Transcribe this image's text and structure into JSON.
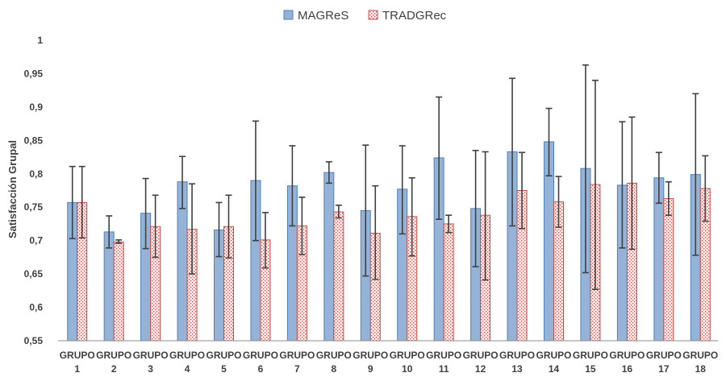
{
  "chart_data": {
    "type": "bar",
    "title": "",
    "xlabel": "",
    "ylabel": "Satisfacción Grupal",
    "ylim": [
      0.55,
      1.0
    ],
    "yticks": [
      "0,55",
      "0,6",
      "0,65",
      "0,7",
      "0,75",
      "0,8",
      "0,85",
      "0,9",
      "0,95",
      "1"
    ],
    "ytick_values": [
      0.55,
      0.6,
      0.65,
      0.7,
      0.75,
      0.8,
      0.85,
      0.9,
      0.95,
      1.0
    ],
    "grid": false,
    "legend_position": "top-center",
    "categories": [
      {
        "line1": "GRUPO",
        "line2": "1"
      },
      {
        "line1": "GRUPO",
        "line2": "2"
      },
      {
        "line1": "GRUPO",
        "line2": "3"
      },
      {
        "line1": "GRUPO",
        "line2": "4"
      },
      {
        "line1": "GRUPO",
        "line2": "5"
      },
      {
        "line1": "GRUPO",
        "line2": "6"
      },
      {
        "line1": "GRUPO",
        "line2": "7"
      },
      {
        "line1": "GRUPO",
        "line2": "8"
      },
      {
        "line1": "GRUPO",
        "line2": "9"
      },
      {
        "line1": "GRUPO",
        "line2": "10"
      },
      {
        "line1": "GRUPO",
        "line2": "11"
      },
      {
        "line1": "GRUPO",
        "line2": "12"
      },
      {
        "line1": "GRUPO",
        "line2": "13"
      },
      {
        "line1": "GRUPO",
        "line2": "14"
      },
      {
        "line1": "GRUPO",
        "line2": "15"
      },
      {
        "line1": "GRUPO",
        "line2": "16"
      },
      {
        "line1": "GRUPO",
        "line2": "17"
      },
      {
        "line1": "GRUPO",
        "line2": "18"
      }
    ],
    "series": [
      {
        "name": "MAGReS",
        "color": "#95B3D7",
        "edge": "#4F81BD",
        "pattern": "solid",
        "values": [
          0.757,
          0.713,
          0.741,
          0.788,
          0.716,
          0.79,
          0.782,
          0.802,
          0.745,
          0.777,
          0.824,
          0.748,
          0.833,
          0.848,
          0.808,
          0.783,
          0.794,
          0.799
        ],
        "error_low": [
          0.703,
          0.689,
          0.688,
          0.748,
          0.676,
          0.7,
          0.722,
          0.786,
          0.647,
          0.71,
          0.732,
          0.661,
          0.722,
          0.797,
          0.652,
          0.689,
          0.756,
          0.678
        ],
        "error_high": [
          0.811,
          0.737,
          0.793,
          0.826,
          0.757,
          0.879,
          0.842,
          0.818,
          0.843,
          0.842,
          0.915,
          0.835,
          0.943,
          0.898,
          0.963,
          0.878,
          0.832,
          0.92
        ]
      },
      {
        "name": "TRADGRec",
        "color": "#F2DCDB",
        "edge": "#C0504D",
        "pattern": "dotted",
        "values": [
          0.757,
          0.698,
          0.721,
          0.717,
          0.721,
          0.701,
          0.722,
          0.743,
          0.711,
          0.736,
          0.725,
          0.738,
          0.775,
          0.758,
          0.784,
          0.786,
          0.763,
          0.778
        ],
        "error_low": [
          0.704,
          0.696,
          0.675,
          0.65,
          0.674,
          0.659,
          0.679,
          0.734,
          0.642,
          0.677,
          0.712,
          0.641,
          0.718,
          0.72,
          0.627,
          0.687,
          0.738,
          0.729
        ],
        "error_high": [
          0.811,
          0.701,
          0.768,
          0.785,
          0.768,
          0.742,
          0.765,
          0.753,
          0.782,
          0.794,
          0.738,
          0.833,
          0.832,
          0.796,
          0.94,
          0.885,
          0.788,
          0.827
        ]
      }
    ]
  }
}
